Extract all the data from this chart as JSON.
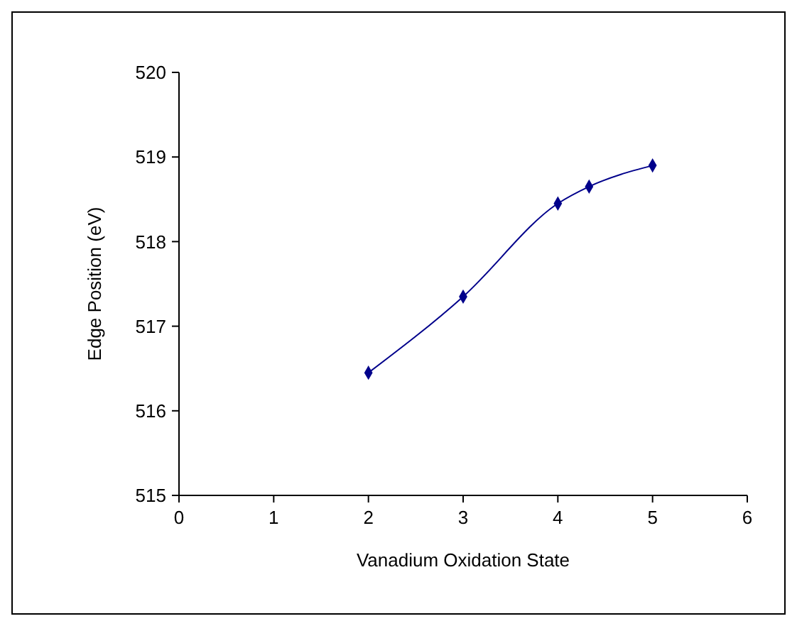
{
  "chart_data": {
    "type": "line",
    "xlabel": "Vanadium Oxidation State",
    "ylabel": "Edge Position (eV)",
    "x": [
      2,
      3,
      4,
      4.33,
      5
    ],
    "series": [
      {
        "color": "#00008b",
        "values": [
          516.45,
          517.35,
          518.45,
          518.65,
          518.9
        ]
      }
    ],
    "xlim": [
      0,
      6
    ],
    "xticks": [
      0,
      1,
      2,
      3,
      4,
      5,
      6
    ],
    "ylim": [
      515,
      520
    ],
    "yticks": [
      515,
      516,
      517,
      518,
      519,
      520
    ],
    "grid": false,
    "marker": "diamond",
    "line_style": "solid"
  }
}
